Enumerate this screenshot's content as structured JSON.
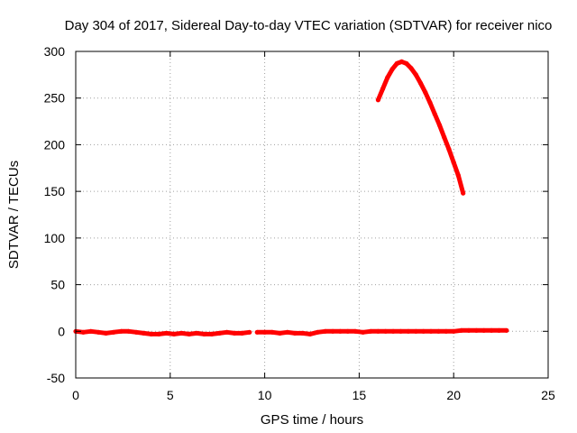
{
  "chart_data": {
    "type": "line",
    "title": "Day 304 of 2017, Sidereal Day-to-day VTEC variation (SDTVAR) for receiver nico",
    "xlabel": "GPS time / hours",
    "ylabel": "SDTVAR / TECUs",
    "xlim": [
      0,
      25
    ],
    "ylim": [
      -50,
      300
    ],
    "x_ticks": [
      0,
      5,
      10,
      15,
      20,
      25
    ],
    "y_ticks": [
      -50,
      0,
      50,
      100,
      150,
      200,
      250,
      300
    ],
    "grid": true,
    "legend": "none",
    "series_color": "#ff0000",
    "series": [
      {
        "points": [
          [
            0.0,
            0
          ],
          [
            0.4,
            -1
          ],
          [
            0.8,
            0
          ],
          [
            1.2,
            -1
          ],
          [
            1.6,
            -2
          ],
          [
            2.0,
            -1
          ],
          [
            2.4,
            0
          ],
          [
            2.8,
            0
          ],
          [
            3.2,
            -1
          ],
          [
            3.6,
            -2
          ],
          [
            4.0,
            -3
          ],
          [
            4.4,
            -3
          ],
          [
            4.8,
            -2
          ],
          [
            5.2,
            -3
          ],
          [
            5.6,
            -2
          ],
          [
            6.0,
            -3
          ],
          [
            6.4,
            -2
          ],
          [
            6.8,
            -3
          ],
          [
            7.2,
            -3
          ],
          [
            7.6,
            -2
          ],
          [
            8.0,
            -1
          ],
          [
            8.4,
            -2
          ],
          [
            8.8,
            -2
          ],
          [
            9.2,
            -1
          ]
        ]
      },
      {
        "points": [
          [
            9.6,
            -1
          ],
          [
            10.0,
            -1
          ],
          [
            10.4,
            -1
          ],
          [
            10.8,
            -2
          ],
          [
            11.2,
            -1
          ],
          [
            11.6,
            -2
          ],
          [
            12.0,
            -2
          ],
          [
            12.4,
            -3
          ],
          [
            12.8,
            -1
          ],
          [
            13.2,
            0
          ],
          [
            13.6,
            0
          ],
          [
            14.0,
            0
          ],
          [
            14.4,
            0
          ],
          [
            14.8,
            0
          ],
          [
            15.2,
            -1
          ],
          [
            15.6,
            0
          ],
          [
            16.0,
            0
          ],
          [
            16.4,
            0
          ],
          [
            16.8,
            0
          ],
          [
            17.2,
            0
          ],
          [
            17.6,
            0
          ],
          [
            18.0,
            0
          ],
          [
            18.4,
            0
          ],
          [
            18.8,
            0
          ],
          [
            19.2,
            0
          ],
          [
            19.6,
            0
          ],
          [
            20.0,
            0
          ],
          [
            20.4,
            1
          ],
          [
            20.8,
            1
          ],
          [
            21.2,
            1
          ],
          [
            21.6,
            1
          ],
          [
            22.0,
            1
          ],
          [
            22.4,
            1
          ],
          [
            22.8,
            1
          ]
        ]
      },
      {
        "points": [
          [
            16.0,
            248
          ],
          [
            16.25,
            260
          ],
          [
            16.5,
            272
          ],
          [
            16.75,
            281
          ],
          [
            17.0,
            287
          ],
          [
            17.25,
            289
          ],
          [
            17.5,
            287
          ],
          [
            17.75,
            282
          ],
          [
            18.0,
            275
          ],
          [
            18.25,
            266
          ],
          [
            18.5,
            256
          ],
          [
            18.75,
            245
          ],
          [
            19.0,
            233
          ],
          [
            19.25,
            221
          ],
          [
            19.5,
            208
          ],
          [
            19.75,
            195
          ],
          [
            20.0,
            181
          ],
          [
            20.25,
            167
          ],
          [
            20.5,
            148
          ]
        ]
      }
    ]
  }
}
